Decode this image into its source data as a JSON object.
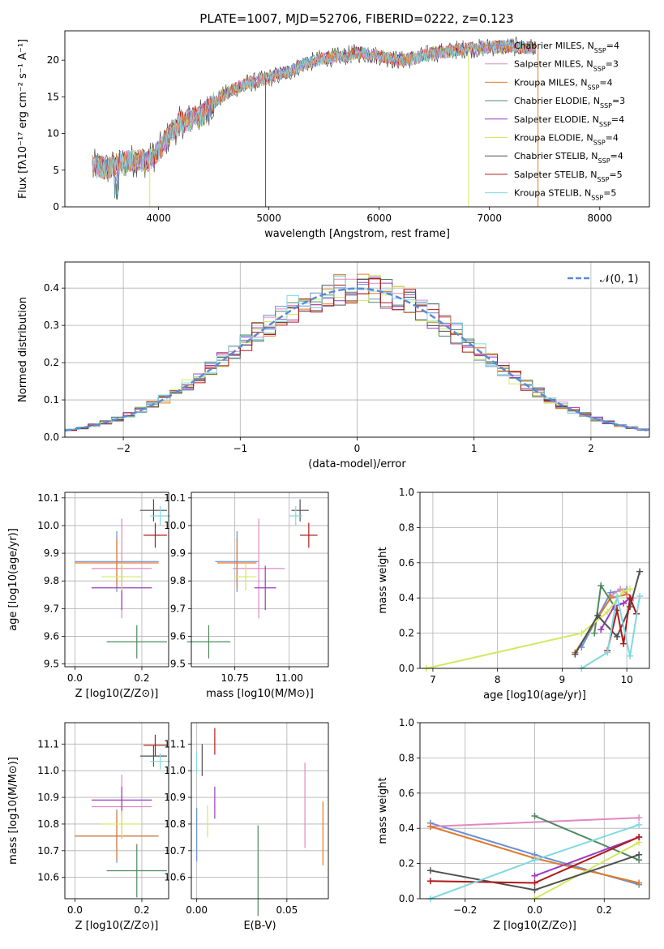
{
  "figure_title": "PLATE=1007, MJD=52706, FIBERID=0222, z=0.123",
  "colors": {
    "Chabrier MILES": "#6a8fd8",
    "Salpeter MILES": "#e088c0",
    "Kroupa MILES": "#e07a2a",
    "Chabrier ELODIE": "#4e8a5e",
    "Salpeter ELODIE": "#9a3ac2",
    "Kroupa ELODIE": "#d2e860",
    "Chabrier STELIB": "#505050",
    "Salpeter STELIB": "#b01818",
    "Kroupa STELIB": "#80d8e0"
  },
  "chart_data": [
    {
      "type": "line",
      "title": "PLATE=1007, MJD=52706, FIBERID=0222, z=0.123",
      "xlabel": "wavelength [Angstrom, rest frame]",
      "ylabel": "Flux [fλ10⁻¹⁷ erg cm⁻² s⁻¹ A⁻¹]",
      "xlim": [
        3150,
        8450
      ],
      "ylim": [
        0,
        24
      ],
      "xticks": [
        "4000",
        "5000",
        "6000",
        "7000",
        "8000"
      ],
      "yticks": [
        "0",
        "5",
        "10",
        "15",
        "20"
      ],
      "grid": false,
      "legend_position": "top-right",
      "continuum": [
        [
          3400,
          5.6
        ],
        [
          3550,
          5.2
        ],
        [
          3650,
          6.0
        ],
        [
          3800,
          6.4
        ],
        [
          3900,
          6.2
        ],
        [
          4000,
          7.6
        ],
        [
          4100,
          9.8
        ],
        [
          4200,
          11.5
        ],
        [
          4300,
          12.0
        ],
        [
          4400,
          12.5
        ],
        [
          4500,
          14.2
        ],
        [
          4600,
          15.3
        ],
        [
          4700,
          16.2
        ],
        [
          4800,
          16.8
        ],
        [
          4900,
          17.1
        ],
        [
          5000,
          17.6
        ],
        [
          5100,
          18.0
        ],
        [
          5200,
          18.5
        ],
        [
          5300,
          19.4
        ],
        [
          5400,
          19.8
        ],
        [
          5500,
          20.3
        ],
        [
          5600,
          20.4
        ],
        [
          5700,
          20.6
        ],
        [
          5800,
          21.0
        ],
        [
          5900,
          20.8
        ],
        [
          6000,
          20.6
        ],
        [
          6100,
          20.2
        ],
        [
          6200,
          20.0
        ],
        [
          6300,
          20.2
        ],
        [
          6400,
          20.6
        ],
        [
          6500,
          21.0
        ],
        [
          6600,
          21.1
        ],
        [
          6700,
          21.4
        ],
        [
          6800,
          21.6
        ],
        [
          6900,
          21.6
        ],
        [
          7000,
          21.8
        ],
        [
          7100,
          21.8
        ],
        [
          7200,
          21.9
        ],
        [
          7300,
          21.7
        ],
        [
          7400,
          21.7
        ]
      ],
      "legend": [
        {
          "label": "Chabrier MILES, N",
          "n": "4"
        },
        {
          "label": "Salpeter MILES, N",
          "n": "3"
        },
        {
          "label": "Kroupa MILES, N",
          "n": "4"
        },
        {
          "label": "Chabrier ELODIE, N",
          "n": "3"
        },
        {
          "label": "Salpeter ELODIE, N",
          "n": "4"
        },
        {
          "label": "Kroupa ELODIE, N",
          "n": "4"
        },
        {
          "label": "Chabrier STELIB, N",
          "n": "4"
        },
        {
          "label": "Salpeter STELIB, N",
          "n": "5"
        },
        {
          "label": "Kroupa STELIB, N",
          "n": "5"
        }
      ],
      "legend_subscript": "SSP",
      "legend_suffix": "="
    },
    {
      "type": "line",
      "xlabel": "(data-model)/error",
      "ylabel": "Normed distribution",
      "xlim": [
        -2.5,
        2.5
      ],
      "ylim": [
        0,
        0.47
      ],
      "xticks": [
        "−2",
        "−1",
        "0",
        "1",
        "2"
      ],
      "yticks": [
        "0.0",
        "0.1",
        "0.2",
        "0.3",
        "0.4"
      ],
      "grid": true,
      "legend_position": "top-right",
      "reference_label": "𝒩(0, 1)",
      "bin_width": 0.1
    },
    {
      "type": "scatter",
      "xlabel": "Z [log10(Z/Z⊙)]",
      "ylabel": "age  [log10(age/yr)]",
      "xlim": [
        -0.03,
        0.28
      ],
      "ylim": [
        9.49,
        10.12
      ],
      "xticks": [
        "0.0",
        "0.2"
      ],
      "yticks": [
        "9.5",
        "9.6",
        "9.7",
        "9.8",
        "9.9",
        "10.0",
        "10.1"
      ],
      "grid": true,
      "points": [
        {
          "model": "Chabrier MILES",
          "x": 0.125,
          "y": 9.87,
          "xerr": 0.125,
          "yerr": 0.11
        },
        {
          "model": "Salpeter MILES",
          "x": 0.14,
          "y": 9.845,
          "xerr": 0.09,
          "yerr": 0.18
        },
        {
          "model": "Kroupa MILES",
          "x": 0.125,
          "y": 9.865,
          "xerr": 0.125,
          "yerr": 0.09
        },
        {
          "model": "Chabrier ELODIE",
          "x": 0.185,
          "y": 9.58,
          "xerr": 0.09,
          "yerr": 0.06
        },
        {
          "model": "Salpeter ELODIE",
          "x": 0.14,
          "y": 9.775,
          "xerr": 0.09,
          "yerr": 0.08
        },
        {
          "model": "Kroupa ELODIE",
          "x": 0.14,
          "y": 9.815,
          "xerr": 0.06,
          "yerr": 0.05
        },
        {
          "model": "Chabrier STELIB",
          "x": 0.235,
          "y": 10.055,
          "xerr": 0.04,
          "yerr": 0.04
        },
        {
          "model": "Salpeter STELIB",
          "x": 0.24,
          "y": 9.965,
          "xerr": 0.035,
          "yerr": 0.045
        },
        {
          "model": "Kroupa STELIB",
          "x": 0.255,
          "y": 10.035,
          "xerr": 0.03,
          "yerr": 0.035
        }
      ]
    },
    {
      "type": "scatter",
      "xlabel": "mass [log10(M/M⊙)]",
      "ylabel": "",
      "xlim": [
        10.55,
        11.18
      ],
      "ylim": [
        9.49,
        10.12
      ],
      "xticks": [
        "10.75",
        "11.00"
      ],
      "yticks": [
        "9.5",
        "9.6",
        "9.7",
        "9.8",
        "9.9",
        "10.0",
        "10.1"
      ],
      "grid": true,
      "points": [
        {
          "model": "Chabrier MILES",
          "x": 10.76,
          "y": 9.87,
          "xerr": 0.1,
          "yerr": 0.11
        },
        {
          "model": "Salpeter MILES",
          "x": 10.86,
          "y": 9.845,
          "xerr": 0.12,
          "yerr": 0.18
        },
        {
          "model": "Kroupa MILES",
          "x": 10.76,
          "y": 9.865,
          "xerr": 0.09,
          "yerr": 0.09
        },
        {
          "model": "Chabrier ELODIE",
          "x": 10.63,
          "y": 9.58,
          "xerr": 0.1,
          "yerr": 0.06
        },
        {
          "model": "Salpeter ELODIE",
          "x": 10.89,
          "y": 9.775,
          "xerr": 0.05,
          "yerr": 0.08
        },
        {
          "model": "Kroupa ELODIE",
          "x": 10.8,
          "y": 9.815,
          "xerr": 0.05,
          "yerr": 0.05
        },
        {
          "model": "Chabrier STELIB",
          "x": 11.05,
          "y": 10.055,
          "xerr": 0.04,
          "yerr": 0.04
        },
        {
          "model": "Salpeter STELIB",
          "x": 11.09,
          "y": 9.965,
          "xerr": 0.04,
          "yerr": 0.045
        },
        {
          "model": "Kroupa STELIB",
          "x": 11.03,
          "y": 10.035,
          "xerr": 0.03,
          "yerr": 0.035
        }
      ]
    },
    {
      "type": "line",
      "xlabel": "age  [log10(age/yr)]",
      "ylabel": "mass weight",
      "xlim": [
        6.8,
        10.35
      ],
      "ylim": [
        0,
        1.0
      ],
      "xticks": [
        "7",
        "8",
        "9",
        "10"
      ],
      "yticks": [
        "0.0",
        "0.2",
        "0.4",
        "0.6",
        "0.8",
        "1.0"
      ],
      "grid": true,
      "series": [
        {
          "model": "Chabrier MILES",
          "x": [
            9.3,
            9.75,
            10.0
          ],
          "y": [
            0.12,
            0.43,
            0.45
          ]
        },
        {
          "model": "Salpeter MILES",
          "x": [
            9.75,
            9.9,
            10.1
          ],
          "y": [
            0.41,
            0.45,
            0.4
          ]
        },
        {
          "model": "Kroupa MILES",
          "x": [
            9.2,
            9.75,
            10.0
          ],
          "y": [
            0.09,
            0.4,
            0.42
          ]
        },
        {
          "model": "Chabrier ELODIE",
          "x": [
            9.5,
            9.6,
            9.85
          ],
          "y": [
            0.2,
            0.47,
            0.33
          ]
        },
        {
          "model": "Salpeter ELODIE",
          "x": [
            9.6,
            9.8,
            9.95,
            10.05
          ],
          "y": [
            0.22,
            0.35,
            0.37,
            0.4
          ]
        },
        {
          "model": "Kroupa ELODIE",
          "x": [
            6.9,
            9.3,
            9.7,
            9.95,
            10.05
          ],
          "y": [
            0.0,
            0.2,
            0.32,
            0.44,
            0.45
          ]
        },
        {
          "model": "Chabrier STELIB",
          "x": [
            9.2,
            9.55,
            9.85,
            10.05,
            10.2
          ],
          "y": [
            0.08,
            0.3,
            0.18,
            0.35,
            0.55
          ]
        },
        {
          "model": "Salpeter STELIB",
          "x": [
            9.7,
            9.85,
            9.95,
            10.05,
            10.15
          ],
          "y": [
            0.1,
            0.33,
            0.14,
            0.4,
            0.31
          ]
        },
        {
          "model": "Kroupa STELIB",
          "x": [
            9.3,
            9.7,
            9.85,
            10.05,
            10.2
          ],
          "y": [
            0.0,
            0.09,
            0.41,
            0.07,
            0.41
          ]
        }
      ]
    },
    {
      "type": "scatter",
      "xlabel": "Z [log10(Z/Z⊙)]",
      "ylabel": "mass [log10(M/M⊙)]",
      "xlim": [
        -0.03,
        0.28
      ],
      "ylim": [
        10.52,
        11.18
      ],
      "xticks": [
        "0.0",
        "0.2"
      ],
      "yticks": [
        "10.6",
        "10.7",
        "10.8",
        "10.9",
        "11.0",
        "11.1"
      ],
      "grid": true,
      "points": [
        {
          "model": "Chabrier MILES",
          "x": 0.125,
          "y": 10.755,
          "xerr": 0.125,
          "yerr": 0.1
        },
        {
          "model": "Salpeter MILES",
          "x": 0.14,
          "y": 10.865,
          "xerr": 0.09,
          "yerr": 0.12
        },
        {
          "model": "Kroupa MILES",
          "x": 0.125,
          "y": 10.755,
          "xerr": 0.125,
          "yerr": 0.09
        },
        {
          "model": "Chabrier ELODIE",
          "x": 0.185,
          "y": 10.625,
          "xerr": 0.09,
          "yerr": 0.1
        },
        {
          "model": "Salpeter ELODIE",
          "x": 0.14,
          "y": 10.89,
          "xerr": 0.09,
          "yerr": 0.05
        },
        {
          "model": "Kroupa ELODIE",
          "x": 0.14,
          "y": 10.8,
          "xerr": 0.06,
          "yerr": 0.05
        },
        {
          "model": "Chabrier STELIB",
          "x": 0.235,
          "y": 11.055,
          "xerr": 0.04,
          "yerr": 0.04
        },
        {
          "model": "Salpeter STELIB",
          "x": 0.24,
          "y": 11.095,
          "xerr": 0.035,
          "yerr": 0.04
        },
        {
          "model": "Kroupa STELIB",
          "x": 0.255,
          "y": 11.035,
          "xerr": 0.03,
          "yerr": 0.03
        }
      ]
    },
    {
      "type": "scatter",
      "xlabel": "E(B-V)",
      "ylabel": "",
      "xlim": [
        -0.003,
        0.073
      ],
      "ylim": [
        10.52,
        11.18
      ],
      "xticks": [
        "0.00",
        "0.05"
      ],
      "yticks": [
        "10.6",
        "10.7",
        "10.8",
        "10.9",
        "11.0",
        "11.1"
      ],
      "grid": true,
      "points": [
        {
          "model": "Chabrier MILES",
          "x": 0.0,
          "y": 10.76,
          "yerr": 0.1
        },
        {
          "model": "Salpeter MILES",
          "x": 0.06,
          "y": 10.87,
          "yerr": 0.16
        },
        {
          "model": "Kroupa MILES",
          "x": 0.07,
          "y": 10.765,
          "yerr": 0.12
        },
        {
          "model": "Chabrier ELODIE",
          "x": 0.034,
          "y": 10.625,
          "yerr": 0.17
        },
        {
          "model": "Salpeter ELODIE",
          "x": 0.01,
          "y": 10.88,
          "yerr": 0.06
        },
        {
          "model": "Kroupa ELODIE",
          "x": 0.006,
          "y": 10.81,
          "yerr": 0.06
        },
        {
          "model": "Chabrier STELIB",
          "x": 0.003,
          "y": 11.04,
          "yerr": 0.06
        },
        {
          "model": "Salpeter STELIB",
          "x": 0.01,
          "y": 11.11,
          "yerr": 0.05
        },
        {
          "model": "Kroupa STELIB",
          "x": 0.0,
          "y": 11.03,
          "yerr": 0.04
        }
      ]
    },
    {
      "type": "line",
      "xlabel": "Z [log10(Z/Z⊙)]",
      "ylabel": "mass weight",
      "xlim": [
        -0.33,
        0.33
      ],
      "ylim": [
        0,
        1.0
      ],
      "xticks": [
        "−0.2",
        "0.0",
        "0.2"
      ],
      "yticks": [
        "0.0",
        "0.2",
        "0.4",
        "0.6",
        "0.8",
        "1.0"
      ],
      "grid": true,
      "series": [
        {
          "model": "Chabrier MILES",
          "x": [
            -0.3,
            0.0,
            0.3
          ],
          "y": [
            0.43,
            0.25,
            0.08
          ]
        },
        {
          "model": "Salpeter MILES",
          "x": [
            -0.3,
            0.3
          ],
          "y": [
            0.41,
            0.46
          ]
        },
        {
          "model": "Kroupa MILES",
          "x": [
            -0.3,
            0.0,
            0.3
          ],
          "y": [
            0.41,
            0.23,
            0.09
          ]
        },
        {
          "model": "Chabrier ELODIE",
          "x": [
            0.0,
            0.3
          ],
          "y": [
            0.47,
            0.22
          ]
        },
        {
          "model": "Salpeter ELODIE",
          "x": [
            0.0,
            0.3
          ],
          "y": [
            0.13,
            0.35
          ]
        },
        {
          "model": "Kroupa ELODIE",
          "x": [
            0.0,
            0.3
          ],
          "y": [
            0.0,
            0.32
          ]
        },
        {
          "model": "Chabrier STELIB",
          "x": [
            -0.3,
            0.0,
            0.3
          ],
          "y": [
            0.16,
            0.05,
            0.25
          ]
        },
        {
          "model": "Salpeter STELIB",
          "x": [
            -0.3,
            0.0,
            0.3
          ],
          "y": [
            0.1,
            0.09,
            0.35
          ]
        },
        {
          "model": "Kroupa STELIB",
          "x": [
            -0.3,
            0.0,
            0.3
          ],
          "y": [
            0.0,
            0.22,
            0.42
          ]
        }
      ]
    }
  ]
}
